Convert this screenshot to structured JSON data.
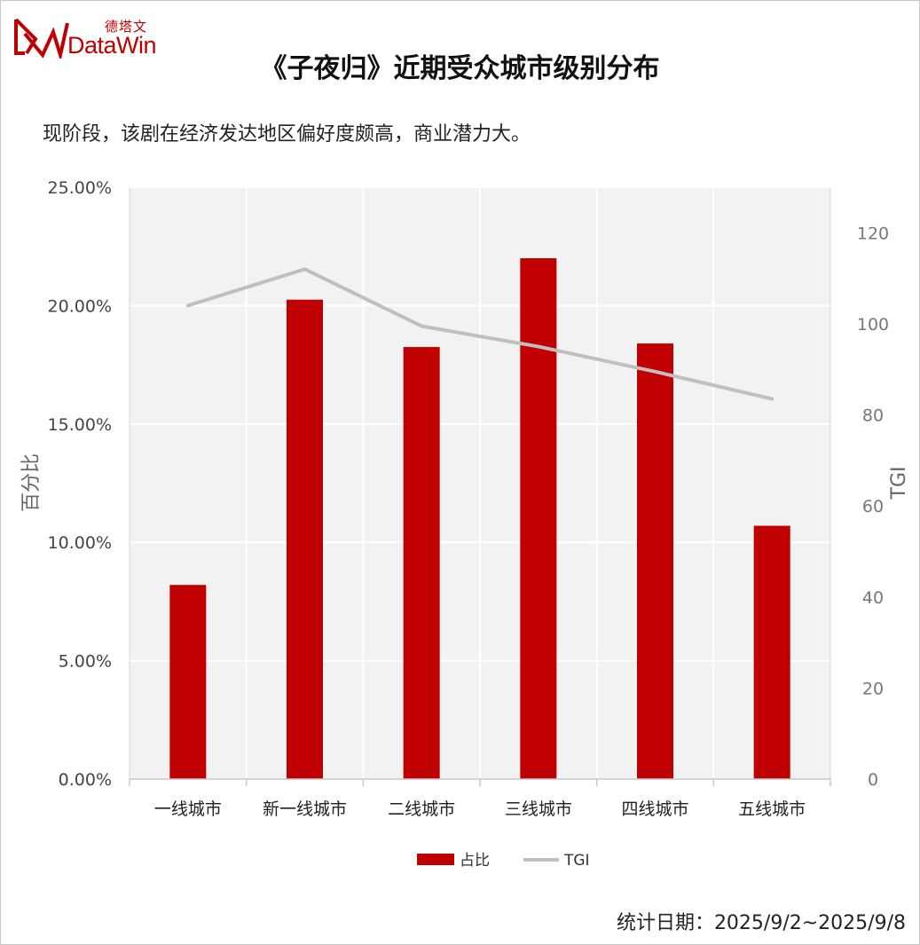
{
  "logo": {
    "cn": "德塔文",
    "en": "DataWin"
  },
  "title": "《子夜归》近期受众城市级别分布",
  "subtitle": "现阶段，该剧在经济发达地区偏好度颇高，商业潜力大。",
  "footer": "统计日期：2025/9/2~2025/9/8",
  "colors": {
    "bar": "#c00000",
    "line": "#bfbfbf",
    "plot_bg": "#f2f2f2",
    "brand": "#c00000"
  },
  "chart_data": {
    "type": "bar",
    "categories": [
      "一线城市",
      "新一线城市",
      "二线城市",
      "三线城市",
      "四线城市",
      "五线城市"
    ],
    "series": [
      {
        "name": "占比",
        "type": "bar",
        "axis": "left",
        "values": [
          8.2,
          20.25,
          18.25,
          22.0,
          18.4,
          10.7
        ]
      },
      {
        "name": "TGI",
        "type": "line",
        "axis": "right",
        "values": [
          104,
          112,
          99.5,
          95,
          89.5,
          83.5
        ]
      }
    ],
    "ylabel": "百分比",
    "y2label": "TGI",
    "ylim": [
      0,
      25
    ],
    "y2lim": [
      0,
      130
    ],
    "yticks": [
      "0.00%",
      "5.00%",
      "10.00%",
      "15.00%",
      "20.00%",
      "25.00%"
    ],
    "y2ticks": [
      "0",
      "20",
      "40",
      "60",
      "80",
      "100",
      "120"
    ],
    "legend": {
      "position": "bottom",
      "items": [
        "占比",
        "TGI"
      ]
    },
    "grid": true
  }
}
